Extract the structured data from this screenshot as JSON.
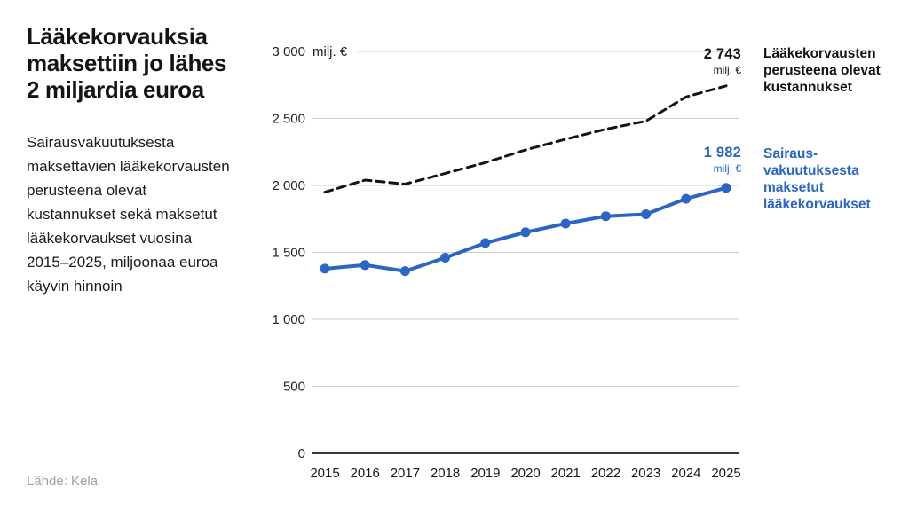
{
  "header": {
    "title": "Lääkekorvauksia\nmaksettiin jo lähes\n2 miljardia euroa",
    "subtitle": "Sairausvakuutuksesta\nmaksettavien lääkekorvausten\nperusteena olevat\nkustannukset sekä maksetut\nlääkekorvaukset vuosina\n2015–2025, miljoonaa euroa\nkäyvin hinnoin"
  },
  "source": "Lähde: Kela",
  "colors": {
    "accent_blue": "#2b65c5",
    "line_black": "#141414",
    "grid": "#cccccc",
    "axis": "#3a3a3a",
    "tick_text": "#222222",
    "muted": "#9e9e9e"
  },
  "chart_data": {
    "type": "line",
    "unit": "milj. €",
    "categories": [
      2015,
      2016,
      2017,
      2018,
      2019,
      2020,
      2021,
      2022,
      2023,
      2024,
      2025
    ],
    "x_tick_labels": [
      "2015",
      "2016",
      "2017",
      "2018",
      "2019",
      "2020",
      "2021",
      "2022",
      "2023",
      "2024",
      "2025"
    ],
    "y_ticks": [
      0,
      500,
      1000,
      1500,
      2000,
      2500,
      3000
    ],
    "y_tick_labels": [
      "0",
      "500",
      "1 000",
      "1 500",
      "2 000",
      "2 500",
      "3 000"
    ],
    "ylim": [
      0,
      3000
    ],
    "grid": true,
    "legend_position": "right",
    "series": [
      {
        "name": "Lääkekorvausten perusteena olevat kustannukset",
        "style": "dashed",
        "color": "#141414",
        "values": [
          1950,
          2040,
          2010,
          2090,
          2170,
          2265,
          2345,
          2420,
          2480,
          2660,
          2743
        ],
        "end_label": {
          "value": "2 743",
          "unit": "milj. €"
        },
        "legend": "Lääkekorvausten\nperusteena olevat\nkustannukset"
      },
      {
        "name": "Sairausvakuutuksesta maksetut lääkekorvaukset",
        "style": "solid-markers",
        "color": "#2b65c5",
        "values": [
          1378,
          1405,
          1360,
          1460,
          1570,
          1650,
          1715,
          1770,
          1785,
          1900,
          1982
        ],
        "end_label": {
          "value": "1 982",
          "unit": "milj. €"
        },
        "legend": "Sairaus-\nvakuutuksesta\nmaksetut\nlääkekorvaukset"
      }
    ]
  }
}
